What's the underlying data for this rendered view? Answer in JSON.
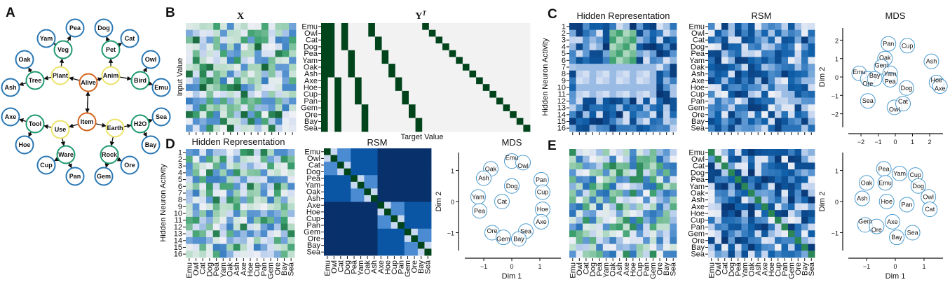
{
  "panel_letters": {
    "a": "A",
    "b": "B",
    "c": "C",
    "d": "D",
    "e": "E"
  },
  "items": [
    "Emu",
    "Owl",
    "Cat",
    "Dog",
    "Pea",
    "Yam",
    "Oak",
    "Ash",
    "Axe",
    "Hoe",
    "Cup",
    "Pan",
    "Gem",
    "Ore",
    "Bay",
    "Sea"
  ],
  "neuron_labels": [
    "1",
    "2",
    "3",
    "4",
    "5",
    "6",
    "7",
    "8",
    "9",
    "10",
    "11",
    "12",
    "13",
    "14",
    "15",
    "16"
  ],
  "colors": {
    "root": "#d4651f",
    "level1": "#ece46a",
    "level2": "#1f9a6e",
    "leaf": "#2a78b5",
    "mds_circle": "#4a9ad0",
    "target_on": "#00441b",
    "target_off": "#f2f2f2"
  },
  "tree": {
    "nodes": [
      "Alive",
      "Item",
      "Plant",
      "Anim",
      "Use",
      "Earth",
      "Veg",
      "Pet",
      "Tree",
      "Bird",
      "Tool",
      "H2O",
      "Ware",
      "Rock",
      "Pea",
      "Yam",
      "Dog",
      "Cat",
      "Oak",
      "Ash",
      "Owl",
      "Emu",
      "Axe",
      "Hoe",
      "Sea",
      "Bay",
      "Cup",
      "Pan",
      "Gem",
      "Ore"
    ],
    "levels": {
      "root": [
        "Alive",
        "Item"
      ],
      "level1": [
        "Plant",
        "Anim",
        "Use",
        "Earth"
      ],
      "level2": [
        "Veg",
        "Pet",
        "Tree",
        "Bird",
        "Tool",
        "H2O",
        "Ware",
        "Rock"
      ]
    },
    "edges": [
      [
        "Alive",
        "Item"
      ],
      [
        "Item",
        "Alive"
      ],
      [
        "Alive",
        "Plant"
      ],
      [
        "Alive",
        "Anim"
      ],
      [
        "Item",
        "Use"
      ],
      [
        "Item",
        "Earth"
      ],
      [
        "Plant",
        "Veg"
      ],
      [
        "Plant",
        "Tree"
      ],
      [
        "Anim",
        "Pet"
      ],
      [
        "Anim",
        "Bird"
      ],
      [
        "Use",
        "Tool"
      ],
      [
        "Use",
        "Ware"
      ],
      [
        "Earth",
        "H2O"
      ],
      [
        "Earth",
        "Rock"
      ],
      [
        "Veg",
        "Pea"
      ],
      [
        "Veg",
        "Yam"
      ],
      [
        "Pet",
        "Dog"
      ],
      [
        "Pet",
        "Cat"
      ],
      [
        "Tree",
        "Oak"
      ],
      [
        "Tree",
        "Ash"
      ],
      [
        "Bird",
        "Owl"
      ],
      [
        "Bird",
        "Emu"
      ],
      [
        "Tool",
        "Axe"
      ],
      [
        "Tool",
        "Hoe"
      ],
      [
        "H2O",
        "Sea"
      ],
      [
        "H2O",
        "Bay"
      ],
      [
        "Ware",
        "Cup"
      ],
      [
        "Ware",
        "Pan"
      ],
      [
        "Rock",
        "Gem"
      ],
      [
        "Rock",
        "Ore"
      ]
    ]
  },
  "panel_b": {
    "x_title": "X",
    "y_title": "Y",
    "y_title_sup": "T",
    "ylabel": "Input Value",
    "xlabel": "Target Value"
  },
  "panel_c": {
    "hidden_title": "Hidden Representation",
    "rsm_title": "RSM",
    "mds_title": "MDS",
    "ylabel": "Hidden Neuron Activity",
    "mds_ylabel": "Dim 2"
  },
  "panel_d": {
    "hidden_title": "Hidden Representation",
    "rsm_title": "RSM",
    "mds_title": "MDS",
    "ylabel": "Hidden Neuron Activity",
    "mds_xlabel": "Dim 1",
    "mds_ylabel": "Dim 2"
  },
  "panel_e": {
    "mds_xlabel": "Dim 1",
    "mds_ylabel": "Dim 2"
  },
  "chart_data": [
    {
      "type": "heatmap",
      "panel": "B",
      "title": "X",
      "ylabel": "Input Value",
      "rows": 16,
      "cols": 16,
      "colormap": "blue-white-green"
    },
    {
      "type": "heatmap",
      "panel": "B",
      "title": "Y^T",
      "xlabel": "Target Value",
      "row_labels_ref": "items",
      "columns_on_rows": [
        [
          0,
          15
        ],
        [
          0,
          7
        ],
        [
          8,
          15
        ],
        [
          0,
          3
        ],
        [
          4,
          7
        ],
        [
          8,
          11
        ],
        [
          12,
          15
        ],
        [
          0,
          1
        ],
        [
          2,
          3
        ],
        [
          4,
          5
        ],
        [
          6,
          7
        ],
        [
          8,
          9
        ],
        [
          10,
          11
        ],
        [
          12,
          13
        ],
        [
          14,
          15
        ],
        [
          0,
          0
        ],
        [
          1,
          1
        ],
        [
          2,
          2
        ],
        [
          3,
          3
        ],
        [
          4,
          4
        ],
        [
          5,
          5
        ],
        [
          6,
          6
        ],
        [
          7,
          7
        ],
        [
          8,
          8
        ],
        [
          9,
          9
        ],
        [
          10,
          10
        ],
        [
          11,
          11
        ],
        [
          12,
          12
        ],
        [
          13,
          13
        ],
        [
          14,
          14
        ],
        [
          15,
          15
        ]
      ]
    },
    {
      "type": "heatmap",
      "panel": "C",
      "title": "Hidden Representation",
      "ylabel": "Hidden Neuron Activity",
      "rows": 16,
      "cols": 16
    },
    {
      "type": "heatmap",
      "panel": "C",
      "title": "RSM",
      "row_labels_ref": "items"
    },
    {
      "type": "scatter",
      "panel": "C",
      "title": "MDS",
      "xlabel": "",
      "ylabel": "Dim 2",
      "xticks": [
        -2,
        -1,
        0,
        1,
        2
      ],
      "yticks": [
        -2,
        -1,
        0,
        1,
        2
      ],
      "xlim": [
        -2.7,
        2.8
      ],
      "ylim": [
        -2.7,
        2.7
      ],
      "points": [
        {
          "label": "Pan",
          "x": -0.4,
          "y": 1.8
        },
        {
          "label": "Cup",
          "x": 0.7,
          "y": 1.7
        },
        {
          "label": "Oak",
          "x": -0.6,
          "y": 1.0
        },
        {
          "label": "Ash",
          "x": 2.1,
          "y": 0.85
        },
        {
          "label": "Gem",
          "x": -0.8,
          "y": 0.55
        },
        {
          "label": "Emu",
          "x": -2.1,
          "y": 0.2
        },
        {
          "label": "Yam",
          "x": -0.3,
          "y": 0.2
        },
        {
          "label": "Ore",
          "x": -1.6,
          "y": -0.1
        },
        {
          "label": "Bay",
          "x": -1.2,
          "y": -0.1
        },
        {
          "label": "Pea",
          "x": -0.3,
          "y": -0.15
        },
        {
          "label": "Dog",
          "x": 0.65,
          "y": -0.6
        },
        {
          "label": "Hoe",
          "x": 2.4,
          "y": -0.3
        },
        {
          "label": "Axe",
          "x": 2.6,
          "y": -0.5
        },
        {
          "label": "Sea",
          "x": -1.6,
          "y": -1.3
        },
        {
          "label": "Owl",
          "x": -0.05,
          "y": -1.65
        },
        {
          "label": "Cat",
          "x": 0.45,
          "y": -1.45
        }
      ]
    },
    {
      "type": "heatmap",
      "panel": "D",
      "title": "Hidden Representation",
      "ylabel": "Hidden Neuron Activity",
      "rows": 16,
      "cols": 16
    },
    {
      "type": "heatmap",
      "panel": "D",
      "title": "RSM",
      "structure": "hierarchical",
      "levels": {
        "self": 1.0,
        "same_pair": 0.75,
        "same_group_of_4": 0.5,
        "same_group_of_8": 0.25,
        "other": 0.0
      }
    },
    {
      "type": "scatter",
      "panel": "D",
      "title": "MDS",
      "xlabel": "Dim 1",
      "ylabel": "Dim 2",
      "xticks": [
        -1,
        0,
        1
      ],
      "yticks": [
        -1,
        0,
        1
      ],
      "xlim": [
        -1.6,
        1.8
      ],
      "ylim": [
        -1.6,
        1.6
      ],
      "points": [
        {
          "label": "Emu",
          "x": 0.0,
          "y": 1.3
        },
        {
          "label": "Owl",
          "x": 0.4,
          "y": 1.25
        },
        {
          "label": "Oak",
          "x": -0.75,
          "y": 1.05
        },
        {
          "label": "Ash",
          "x": -1.0,
          "y": 0.75
        },
        {
          "label": "Pan",
          "x": 1.05,
          "y": 0.7
        },
        {
          "label": "Dog",
          "x": 0.0,
          "y": 0.5
        },
        {
          "label": "Cup",
          "x": 1.1,
          "y": 0.3
        },
        {
          "label": "Yam",
          "x": -1.2,
          "y": 0.15
        },
        {
          "label": "Cat",
          "x": -0.35,
          "y": 0.0
        },
        {
          "label": "Pea",
          "x": -1.15,
          "y": -0.3
        },
        {
          "label": "Hoe",
          "x": 1.1,
          "y": -0.25
        },
        {
          "label": "Axe",
          "x": 1.05,
          "y": -0.65
        },
        {
          "label": "Sea",
          "x": 0.5,
          "y": -0.95
        },
        {
          "label": "Ore",
          "x": -0.7,
          "y": -1.0
        },
        {
          "label": "Gem",
          "x": -0.3,
          "y": -1.15
        },
        {
          "label": "Bay",
          "x": 0.25,
          "y": -1.2
        }
      ]
    },
    {
      "type": "heatmap",
      "panel": "E",
      "title": "",
      "rows": 16,
      "cols": 16
    },
    {
      "type": "heatmap",
      "panel": "E",
      "title": "",
      "row_labels_ref": "items"
    },
    {
      "type": "scatter",
      "panel": "E",
      "title": "",
      "xlabel": "Dim 1",
      "ylabel": "Dim 2",
      "xticks": [
        -1,
        0,
        1
      ],
      "yticks": [
        -1,
        0,
        1
      ],
      "xlim": [
        -1.6,
        1.7
      ],
      "ylim": [
        -1.6,
        1.6
      ],
      "points": [
        {
          "label": "Pea",
          "x": -0.4,
          "y": 1.05
        },
        {
          "label": "Yam",
          "x": 0.15,
          "y": 0.9
        },
        {
          "label": "Cup",
          "x": 0.7,
          "y": 0.85
        },
        {
          "label": "Oak",
          "x": -1.0,
          "y": 0.6
        },
        {
          "label": "Emu",
          "x": -0.35,
          "y": 0.6
        },
        {
          "label": "Dog",
          "x": 0.8,
          "y": 0.5
        },
        {
          "label": "Ash",
          "x": -1.15,
          "y": 0.1
        },
        {
          "label": "Hoe",
          "x": -0.3,
          "y": 0.0
        },
        {
          "label": "Owl",
          "x": 1.15,
          "y": 0.15
        },
        {
          "label": "Pan",
          "x": 0.4,
          "y": -0.1
        },
        {
          "label": "Cat",
          "x": 1.2,
          "y": -0.25
        },
        {
          "label": "Axe",
          "x": -0.1,
          "y": -0.65
        },
        {
          "label": "Gem",
          "x": -1.05,
          "y": -0.75
        },
        {
          "label": "Ore",
          "x": -0.65,
          "y": -0.8
        },
        {
          "label": "Sea",
          "x": 0.6,
          "y": -1.0
        },
        {
          "label": "Bay",
          "x": 0.05,
          "y": -1.15
        }
      ]
    }
  ]
}
